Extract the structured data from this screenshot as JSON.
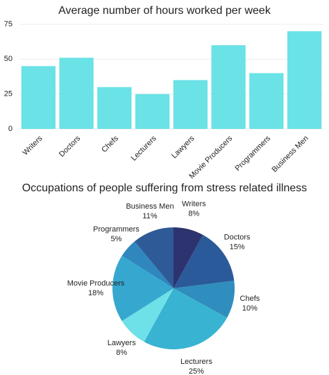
{
  "chart_data": [
    {
      "type": "bar",
      "title": "Average number of hours worked per week",
      "categories": [
        "Writers",
        "Doctors",
        "Chefs",
        "Lecturers",
        "Lawyers",
        "Movie Producers",
        "Programmers",
        "Business Men"
      ],
      "values": [
        45,
        51,
        30,
        25,
        35,
        60,
        40,
        70
      ],
      "color": "#6ae2e6",
      "ylim": [
        0,
        75
      ],
      "yticks": [
        0,
        25,
        50,
        75
      ],
      "grid": true
    },
    {
      "type": "pie",
      "title": "Occupations of people suffering from stress related illness",
      "categories": [
        "Writers",
        "Doctors",
        "Chefs",
        "Lecturers",
        "Lawyers",
        "Movie Producers",
        "Programmers",
        "Business Men"
      ],
      "values": [
        8,
        15,
        10,
        25,
        8,
        18,
        5,
        11
      ],
      "value_labels": [
        "8%",
        "15%",
        "10%",
        "25%",
        "8%",
        "18%",
        "5%",
        "11%"
      ],
      "colors": [
        "#2d336e",
        "#2b5a9a",
        "#2f8ebe",
        "#38b3d2",
        "#6ee0e8",
        "#36a8d0",
        "#2f87be",
        "#2f5a98"
      ]
    }
  ]
}
